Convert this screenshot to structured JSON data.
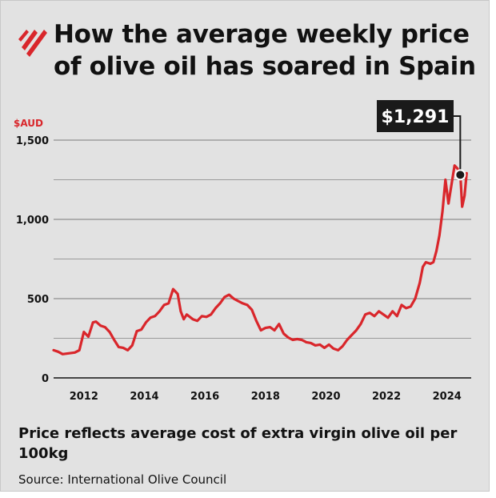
{
  "header": {
    "title": "How the average weekly price of olive oil has soared in Spain"
  },
  "footer": {
    "note": "Price reflects average cost of extra virgin olive oil per 100kg",
    "source": "Source: International Olive Council"
  },
  "colors": {
    "line": "#d9262b",
    "background": "#e2e2e2",
    "callout_bg": "#1a1a1a",
    "logo": "#d9262b"
  },
  "chart_data": {
    "type": "line",
    "title": "How the average weekly price of olive oil has soared in Spain",
    "xlabel": "",
    "ylabel": "$AUD",
    "xlim": [
      2011,
      2024.8
    ],
    "ylim": [
      0,
      1500
    ],
    "x_ticks": [
      2012,
      2014,
      2016,
      2018,
      2020,
      2022,
      2024
    ],
    "y_ticks": [
      0,
      500,
      1000,
      1500
    ],
    "y_tick_labels": [
      "0",
      "500",
      "1,000",
      "1,500"
    ],
    "grid": "horizontal",
    "series": [
      {
        "x": [
          2011.0,
          2011.15,
          2011.3,
          2011.5,
          2011.7,
          2011.85,
          2012.0,
          2012.15,
          2012.3,
          2012.4,
          2012.55,
          2012.7,
          2012.85,
          2013.0,
          2013.15,
          2013.3,
          2013.45,
          2013.6,
          2013.75,
          2013.9,
          2014.05,
          2014.2,
          2014.35,
          2014.5,
          2014.65,
          2014.8,
          2014.95,
          2015.1,
          2015.2,
          2015.3,
          2015.4,
          2015.5,
          2015.6,
          2015.75,
          2015.9,
          2016.05,
          2016.2,
          2016.35,
          2016.5,
          2016.65,
          2016.8,
          2016.95,
          2017.1,
          2017.25,
          2017.4,
          2017.55,
          2017.7,
          2017.85,
          2018.0,
          2018.15,
          2018.3,
          2018.45,
          2018.6,
          2018.75,
          2018.9,
          2019.05,
          2019.2,
          2019.35,
          2019.5,
          2019.65,
          2019.8,
          2019.95,
          2020.1,
          2020.25,
          2020.4,
          2020.55,
          2020.7,
          2020.85,
          2021.0,
          2021.15,
          2021.3,
          2021.45,
          2021.6,
          2021.75,
          2021.9,
          2022.05,
          2022.2,
          2022.35,
          2022.5,
          2022.65,
          2022.8,
          2022.95,
          2023.1,
          2023.2,
          2023.3,
          2023.45,
          2023.55,
          2023.65,
          2023.75,
          2023.85,
          2023.95,
          2024.05,
          2024.15,
          2024.25,
          2024.35,
          2024.45,
          2024.5,
          2024.58,
          2024.65
        ],
        "values": [
          175,
          165,
          150,
          155,
          160,
          175,
          290,
          260,
          350,
          355,
          330,
          320,
          290,
          240,
          195,
          190,
          175,
          205,
          295,
          305,
          350,
          380,
          390,
          420,
          460,
          470,
          560,
          530,
          420,
          370,
          400,
          385,
          370,
          360,
          390,
          385,
          400,
          440,
          470,
          510,
          525,
          500,
          485,
          470,
          460,
          430,
          360,
          300,
          315,
          320,
          300,
          340,
          280,
          255,
          240,
          245,
          240,
          225,
          220,
          205,
          210,
          190,
          210,
          185,
          175,
          200,
          240,
          270,
          300,
          340,
          400,
          410,
          390,
          420,
          400,
          380,
          420,
          390,
          460,
          440,
          450,
          500,
          600,
          700,
          730,
          720,
          730,
          800,
          900,
          1050,
          1250,
          1100,
          1220,
          1340,
          1320,
          1250,
          1080,
          1150,
          1291
        ]
      }
    ],
    "annotations": [
      {
        "label": "$1,291",
        "x": 2024.65,
        "y": 1291
      }
    ]
  }
}
